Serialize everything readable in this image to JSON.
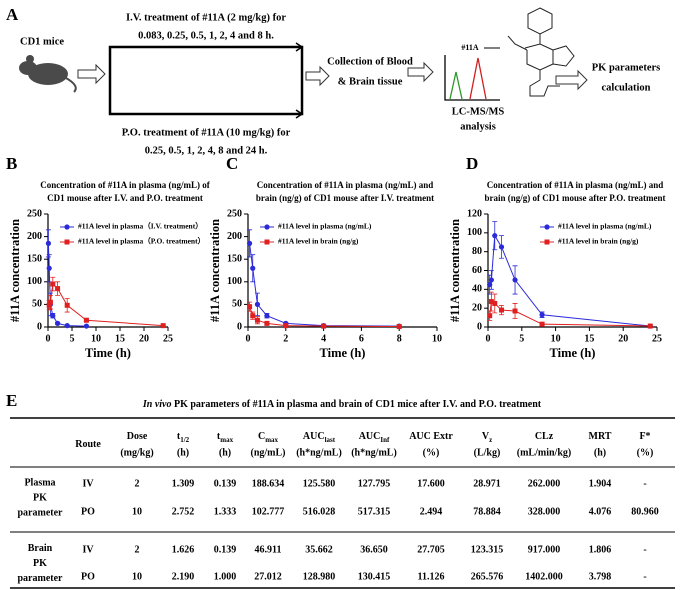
{
  "panel_labels": [
    "A",
    "B",
    "C",
    "D",
    "E"
  ],
  "diagram": {
    "mouse_label": "CD1 mice",
    "iv_text": [
      "I.V. treatment of #11A (2 mg/kg) for",
      "0.083, 0.25, 0.5, 1, 2, 4 and 8 h."
    ],
    "po_text": [
      "P.O. treatment of #11A (10 mg/kg) for",
      "0.25, 0.5, 1, 2, 4, 8 and 24 h."
    ],
    "collection": [
      "Collection of Blood",
      "& Brain tissue"
    ],
    "compound_label": "#11A",
    "lcms": [
      "LC-MS/MS",
      "analysis"
    ],
    "pk": [
      "PK parameters",
      "calculation"
    ]
  },
  "chart_data": [
    {
      "type": "line",
      "title": [
        "Concentration of #11A in plasma (ng/mL) of",
        "CD1 mouse after I.V. and P.O. treatment"
      ],
      "x_label": "Time (h)",
      "y_label": "#11A concentration",
      "xlim": [
        0,
        25
      ],
      "xticks": [
        0,
        5,
        10,
        15,
        20,
        25
      ],
      "ylim": [
        0,
        250
      ],
      "yticks": [
        0,
        50,
        100,
        150,
        200,
        250
      ],
      "grid": false,
      "legend": "upper left",
      "series": [
        {
          "name": "#11A level in plasma（I.V. treatment）",
          "color": "#2b2bd9",
          "marker": "circle",
          "x": [
            0.083,
            0.25,
            0.5,
            1,
            2,
            4,
            8
          ],
          "values": [
            185,
            130,
            50,
            25,
            8,
            3,
            2
          ],
          "errors": [
            30,
            30,
            25,
            5,
            2,
            1,
            1
          ]
        },
        {
          "name": "#11A level in plasma（P.O. treatment）",
          "color": "#e02020",
          "marker": "square",
          "x": [
            0.25,
            0.5,
            1,
            2,
            4,
            8,
            24
          ],
          "values": [
            48,
            55,
            95,
            85,
            48,
            15,
            3
          ],
          "errors": [
            10,
            15,
            15,
            15,
            15,
            3,
            1
          ]
        }
      ]
    },
    {
      "type": "line",
      "title": [
        "Concentration of #11A in plasma (ng/mL) and",
        "brain (ng/g) of CD1 mouse after I.V. treatment"
      ],
      "x_label": "Time (h)",
      "y_label": "#11A concentration",
      "xlim": [
        0,
        10
      ],
      "xticks": [
        0,
        2,
        4,
        6,
        8,
        10
      ],
      "ylim": [
        0,
        250
      ],
      "yticks": [
        0,
        50,
        100,
        150,
        200,
        250
      ],
      "grid": false,
      "legend": "upper left",
      "series": [
        {
          "name": "#11A level in plasma (ng/mL)",
          "color": "#2b2bd9",
          "marker": "circle",
          "x": [
            0.083,
            0.25,
            0.5,
            1,
            2,
            4,
            8
          ],
          "values": [
            185,
            130,
            50,
            25,
            8,
            3,
            2
          ],
          "errors": [
            30,
            30,
            25,
            5,
            2,
            1,
            1
          ]
        },
        {
          "name": "#11A level in brain (ng/g)",
          "color": "#e02020",
          "marker": "square",
          "x": [
            0.083,
            0.25,
            0.5,
            1,
            2,
            4,
            8
          ],
          "values": [
            45,
            25,
            15,
            8,
            3,
            2,
            1
          ],
          "errors": [
            10,
            8,
            8,
            3,
            1,
            1,
            0.5
          ]
        }
      ]
    },
    {
      "type": "line",
      "title": [
        "Concentration of #11A in plasma (ng/mL) and",
        "brain (ng/g) of CD1 mouse after P.O.  treatment"
      ],
      "x_label": "Time (h)",
      "y_label": "#11A concentration",
      "xlim": [
        0,
        25
      ],
      "xticks": [
        0,
        5,
        10,
        15,
        20,
        25
      ],
      "ylim": [
        0,
        120
      ],
      "yticks": [
        0,
        20,
        40,
        60,
        80,
        100,
        120
      ],
      "grid": false,
      "legend": "upper center",
      "series": [
        {
          "name": "#11A level in plasma (ng/mL)",
          "color": "#2b2bd9",
          "marker": "circle",
          "x": [
            0.25,
            0.5,
            1,
            2,
            4,
            8,
            24
          ],
          "values": [
            45,
            50,
            97,
            85,
            50,
            13,
            1
          ],
          "errors": [
            10,
            10,
            15,
            12,
            15,
            3,
            0.5
          ]
        },
        {
          "name": "#11A level in brain (ng/g)",
          "color": "#e02020",
          "marker": "square",
          "x": [
            0.25,
            0.5,
            1,
            2,
            4,
            8,
            24
          ],
          "values": [
            12,
            27,
            25,
            18,
            17,
            3,
            1
          ],
          "errors": [
            5,
            10,
            10,
            5,
            8,
            1,
            0.5
          ]
        }
      ]
    }
  ],
  "table": {
    "title_italic": "In vivo",
    "title": " PK parameters of #11A in plasma and brain of CD1 mice after I.V. and P.O. treatment",
    "header": [
      {
        "text": "Route"
      },
      {
        "text": "Dose",
        "unit": "(mg/kg)"
      },
      {
        "text": "t",
        "sub": "1/2",
        "unit": "(h)"
      },
      {
        "text": "t",
        "sub": "max",
        "unit": "(h)"
      },
      {
        "text": "C",
        "sub": "max",
        "unit": "(ng/mL)"
      },
      {
        "text": "AUC",
        "sub": "last",
        "unit": "(h*ng/mL)"
      },
      {
        "text": "AUC",
        "sub": "Inf",
        "unit": "(h*ng/mL)"
      },
      {
        "text": "AUC Extr",
        "unit": "(%)"
      },
      {
        "text": "V",
        "sub": "z",
        "unit": "(L/kg)"
      },
      {
        "text": "CLz",
        "unit": "(mL/min/kg)"
      },
      {
        "text": "MRT",
        "unit": "(h)"
      },
      {
        "text": "F*",
        "unit": "(%)"
      }
    ],
    "groups": [
      {
        "label": [
          "Plasma",
          "PK",
          "parameter"
        ],
        "rows": [
          [
            "IV",
            "2",
            "1.309",
            "0.139",
            "188.634",
            "125.580",
            "127.795",
            "17.600",
            "28.971",
            "262.000",
            "1.904",
            "-"
          ],
          [
            "PO",
            "10",
            "2.752",
            "1.333",
            "102.777",
            "516.028",
            "517.315",
            "2.494",
            "78.884",
            "328.000",
            "4.076",
            "80.960"
          ]
        ]
      },
      {
        "label": [
          "Brain",
          "PK",
          "parameter"
        ],
        "rows": [
          [
            "IV",
            "2",
            "1.626",
            "0.139",
            "46.911",
            "35.662",
            "36.650",
            "27.705",
            "123.315",
            "917.000",
            "1.806",
            "-"
          ],
          [
            "PO",
            "10",
            "2.190",
            "1.000",
            "27.012",
            "128.980",
            "130.415",
            "11.126",
            "265.576",
            "1402.000",
            "3.798",
            "-"
          ]
        ]
      }
    ]
  }
}
